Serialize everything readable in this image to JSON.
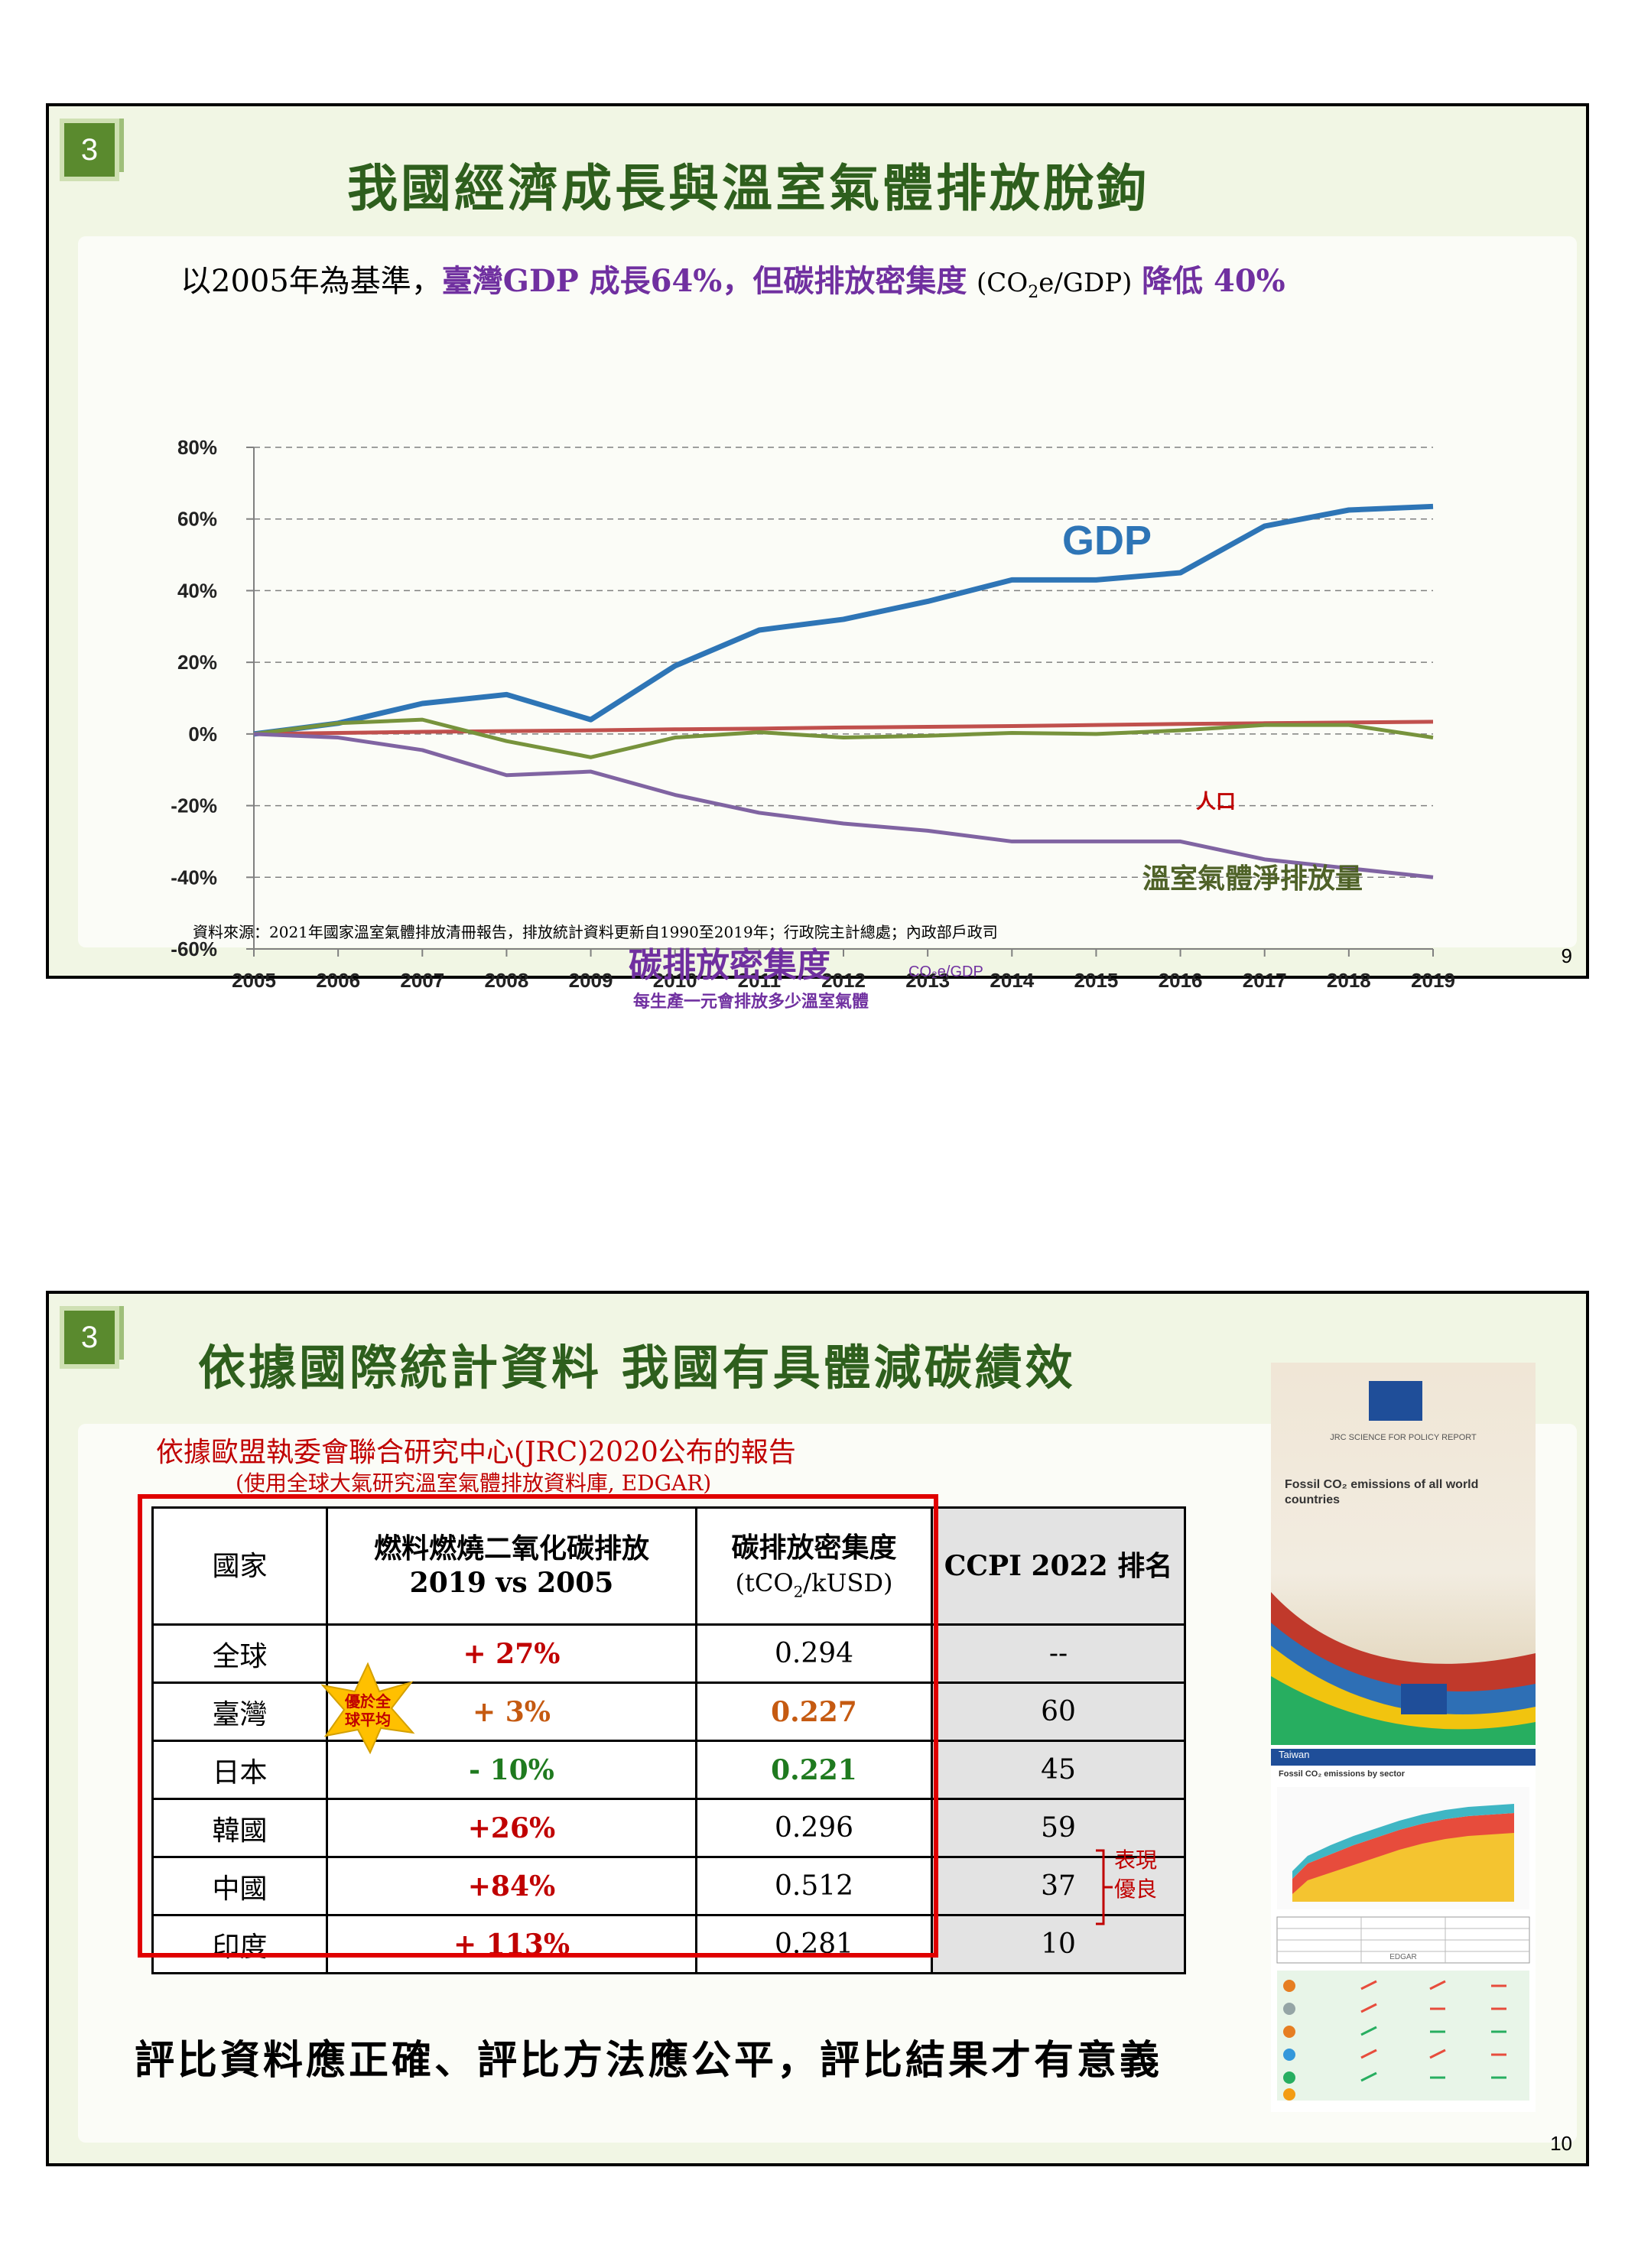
{
  "slide1": {
    "badge": "3",
    "title": "我國經濟成長與溫室氣體排放脫鉤",
    "subtitle_prefix": "以2005年為基準，",
    "subtitle_highlight": "臺灣GDP 成長64%，但碳排放密集度",
    "subtitle_unit_pre": "(CO",
    "subtitle_unit_sub": "2",
    "subtitle_unit_post": "e/GDP)",
    "subtitle_tail": "降低 40%",
    "source": "資料來源：2021年國家溫室氣體排放清冊報告，排放統計資料更新自1990至2019年；行政院主計總處；內政部戶政司",
    "page": "9",
    "labels": {
      "gdp": "GDP",
      "population": "人口",
      "ghg": "溫室氣體淨排放量",
      "intensity": "碳排放密集度",
      "intensity_unit": "CO₂e/GDP",
      "intensity_note": "每生產一元會排放多少溫室氣體"
    }
  },
  "chart_data": {
    "type": "line",
    "x": [
      2005,
      2006,
      2007,
      2008,
      2009,
      2010,
      2011,
      2012,
      2013,
      2014,
      2015,
      2016,
      2017,
      2018,
      2019
    ],
    "xticks": [
      "2005",
      "2006",
      "2007",
      "2008",
      "2009",
      "2010",
      "2011",
      "2012",
      "2013",
      "2014",
      "2015",
      "2016",
      "2017",
      "2018",
      "2019"
    ],
    "yticks": [
      "80%",
      "60%",
      "40%",
      "20%",
      "0%",
      "-20%",
      "-40%",
      "-60%"
    ],
    "ylim": [
      -60,
      80
    ],
    "grid": true,
    "series": [
      {
        "name": "GDP",
        "color": "#2e75b6",
        "values": [
          0,
          3,
          8.5,
          11,
          4,
          19,
          29,
          32,
          37,
          43,
          43,
          45,
          58,
          62.5,
          63.5
        ]
      },
      {
        "name": "人口",
        "color": "#c0504d",
        "values": [
          0,
          0.3,
          0.6,
          0.8,
          1,
          1.3,
          1.5,
          1.8,
          2,
          2.2,
          2.5,
          2.8,
          3,
          3.2,
          3.4
        ]
      },
      {
        "name": "溫室氣體淨排放量",
        "color": "#77933c",
        "values": [
          0,
          3,
          4,
          -2,
          -6.5,
          -1,
          0.5,
          -1,
          -0.5,
          0.3,
          0,
          1,
          2.5,
          2.5,
          -1
        ]
      },
      {
        "name": "碳排放密集度",
        "color": "#8064a2",
        "values": [
          0,
          -1,
          -4.5,
          -11.5,
          -10.5,
          -17,
          -22,
          -25,
          -27,
          -30,
          -30,
          -30,
          -35,
          -37.5,
          -40
        ]
      }
    ]
  },
  "slide2": {
    "badge": "3",
    "title": "依據國際統計資料 我國有具體減碳績效",
    "note_line1": "依據歐盟執委會聯合研究中心(JRC)2020公布的報告",
    "note_line2": "(使用全球大氣研究溫室氣體排放資料庫, EDGAR)",
    "headers": {
      "country": "國家",
      "emission_line1": "燃料燃燒二氧化碳排放",
      "emission_line2": "2019 vs 2005",
      "intensity_line1": "碳排放密集度",
      "intensity_unit_pre": "(tCO",
      "intensity_unit_sub": "2",
      "intensity_unit_post": "/kUSD)",
      "ccpi": "CCPI 2022 排名"
    },
    "rows": [
      {
        "country": "全球",
        "emission": "+ 27%",
        "intensity": "0.294",
        "ccpi": "--"
      },
      {
        "country": "臺灣",
        "emission": "+ 3%",
        "intensity": "0.227",
        "ccpi": "60"
      },
      {
        "country": "日本",
        "emission": "- 10%",
        "intensity": "0.221",
        "ccpi": "45"
      },
      {
        "country": "韓國",
        "emission": "+26%",
        "intensity": "0.296",
        "ccpi": "59"
      },
      {
        "country": "中國",
        "emission": "+84%",
        "intensity": "0.512",
        "ccpi": "37"
      },
      {
        "country": "印度",
        "emission": "+ 113%",
        "intensity": "0.281",
        "ccpi": "10"
      }
    ],
    "star_label_line1": "優於全",
    "star_label_line2": "球平均",
    "bracket_note_line1": "表現",
    "bracket_note_line2": "優良",
    "conclusion": "評比資料應正確、評比方法應公平，評比結果才有意義",
    "page": "10",
    "report": {
      "header": "JRC SCIENCE FOR POLICY REPORT",
      "title_line1": "Fossil CO₂ emissions of all world",
      "title_line2": "countries",
      "country": "Taiwan",
      "chart_title": "Fossil CO₂ emissions by sector",
      "edgar": "EDGAR"
    }
  },
  "colors": {
    "title_green": "#2e5f1d",
    "accent_purple": "#7030a0",
    "accent_red": "#c00000"
  }
}
